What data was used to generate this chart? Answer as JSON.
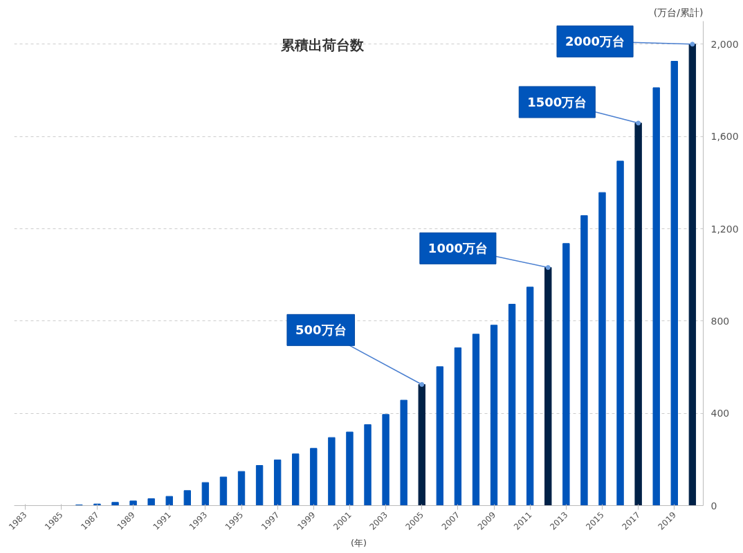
{
  "chart_data": {
    "type": "bar",
    "title": "累積出荷台数",
    "xlabel": "(年)",
    "ylabel": "(万台/累計)",
    "x": [
      1983,
      1984,
      1985,
      1986,
      1987,
      1988,
      1989,
      1990,
      1991,
      1992,
      1993,
      1994,
      1995,
      1996,
      1997,
      1998,
      1999,
      2000,
      2001,
      2002,
      2003,
      2004,
      2005,
      2006,
      2007,
      2008,
      2009,
      2010,
      2011,
      2012,
      2013,
      2014,
      2015,
      2016,
      2017,
      2018,
      2019,
      2020
    ],
    "values": [
      0,
      0,
      0,
      3,
      7,
      14,
      20,
      30,
      40,
      65,
      100,
      124,
      148,
      174,
      198,
      224,
      248,
      295,
      319,
      351,
      395,
      457,
      525,
      602,
      684,
      743,
      782,
      873,
      947,
      1032,
      1136,
      1257,
      1357,
      1493,
      1658,
      1811,
      1926,
      2000
    ],
    "colors": [
      "#0055bb",
      "#0055bb",
      "#0055bb",
      "#0055bb",
      "#0055bb",
      "#0055bb",
      "#0055bb",
      "#0055bb",
      "#0055bb",
      "#0055bb",
      "#0055bb",
      "#0055bb",
      "#0055bb",
      "#0055bb",
      "#0055bb",
      "#0055bb",
      "#0055bb",
      "#0055bb",
      "#0055bb",
      "#0055bb",
      "#0055bb",
      "#0055bb",
      "#002147",
      "#0055bb",
      "#0055bb",
      "#0055bb",
      "#0055bb",
      "#0055bb",
      "#0055bb",
      "#002147",
      "#0055bb",
      "#0055bb",
      "#0055bb",
      "#0055bb",
      "#002147",
      "#0055bb",
      "#0055bb",
      "#002147"
    ],
    "xlim": [
      1982.4,
      2020.6
    ],
    "xticks": [
      1983,
      1985,
      1987,
      1989,
      1991,
      1993,
      1995,
      1997,
      1999,
      2001,
      2003,
      2005,
      2007,
      2009,
      2011,
      2013,
      2015,
      2017,
      2019
    ],
    "ylim": [
      0,
      2100
    ],
    "yticks": [
      0,
      {
        "value": 400,
        "label": "400"
      },
      {
        "value": 800,
        "label": "800"
      },
      {
        "value": 1200,
        "label": "1,200"
      },
      {
        "value": 1600,
        "label": "1,600"
      },
      {
        "value": 2000,
        "label": "2,000"
      }
    ],
    "grid": "y",
    "annotations": [
      {
        "text": "500万台",
        "x": 2005,
        "y": 525
      },
      {
        "text": "1000万台",
        "x": 2012,
        "y": 1032
      },
      {
        "text": "1500万台",
        "x": 2017,
        "y": 1658
      },
      {
        "text": "2000万台",
        "x": 2020,
        "y": 2000
      }
    ]
  }
}
